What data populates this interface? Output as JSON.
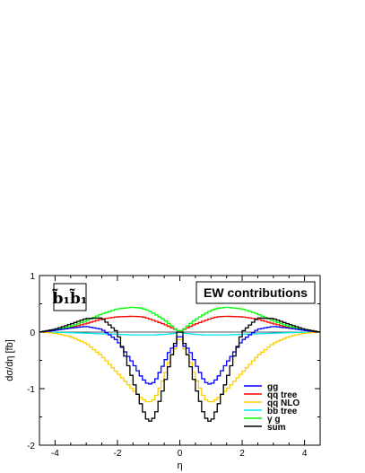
{
  "chart_data": {
    "type": "line",
    "title": "",
    "xlabel": "η",
    "ylabel": "dσ/dη [fb]",
    "xlim": [
      -4.5,
      4.5
    ],
    "ylim": [
      -2,
      1
    ],
    "xticks": [
      "-4",
      "-2",
      "0",
      "2",
      "4"
    ],
    "xtick_values": [
      -4,
      -2,
      0,
      2,
      4
    ],
    "yticks": [
      "-2",
      "-1",
      "0",
      "1"
    ],
    "ytick_values": [
      -2,
      -1,
      0,
      1
    ],
    "process_label": "b̃₁b̃₁",
    "annotation": "EW contributions",
    "legend_position": "bottom-right",
    "x": [
      -4.5,
      -4.0,
      -3.5,
      -3.0,
      -2.5,
      -2.0,
      -1.5,
      -1.2,
      -1.0,
      -0.8,
      -0.5,
      -0.3,
      -0.15,
      0.0,
      0.15,
      0.3,
      0.5,
      0.8,
      1.0,
      1.2,
      1.5,
      2.0,
      2.5,
      3.0,
      3.5,
      4.0,
      4.5
    ],
    "series": [
      {
        "name": "gg",
        "color": "#0000ff",
        "values": [
          0.0,
          0.03,
          0.07,
          0.1,
          0.05,
          -0.15,
          -0.55,
          -0.82,
          -0.93,
          -0.88,
          -0.55,
          -0.3,
          -0.25,
          0.0,
          -0.25,
          -0.3,
          -0.55,
          -0.88,
          -0.93,
          -0.82,
          -0.55,
          -0.15,
          0.05,
          0.1,
          0.07,
          0.03,
          0.0
        ]
      },
      {
        "name": "qq tree",
        "color": "#ff0000",
        "values": [
          0.0,
          0.03,
          0.08,
          0.15,
          0.23,
          0.27,
          0.28,
          0.27,
          0.24,
          0.2,
          0.14,
          0.09,
          0.05,
          0.01,
          0.05,
          0.09,
          0.14,
          0.2,
          0.24,
          0.27,
          0.28,
          0.27,
          0.23,
          0.15,
          0.08,
          0.03,
          0.0
        ]
      },
      {
        "name": "qq NLO",
        "color": "#ffcc00",
        "values": [
          0.0,
          -0.02,
          -0.08,
          -0.2,
          -0.42,
          -0.72,
          -1.02,
          -1.18,
          -1.25,
          -1.18,
          -0.8,
          -0.45,
          -0.3,
          -0.05,
          -0.3,
          -0.45,
          -0.8,
          -1.18,
          -1.25,
          -1.18,
          -1.02,
          -0.72,
          -0.42,
          -0.2,
          -0.08,
          -0.02,
          0.0
        ]
      },
      {
        "name": "bb tree",
        "color": "#00e5ee",
        "values": [
          0.0,
          -0.005,
          -0.01,
          -0.02,
          -0.03,
          -0.04,
          -0.05,
          -0.05,
          -0.05,
          -0.05,
          -0.04,
          -0.03,
          -0.02,
          0.0,
          -0.02,
          -0.03,
          -0.04,
          -0.05,
          -0.05,
          -0.05,
          -0.05,
          -0.04,
          -0.03,
          -0.02,
          -0.01,
          -0.005,
          0.0
        ]
      },
      {
        "name": "γ g",
        "color": "#00ff00",
        "values": [
          0.0,
          0.04,
          0.1,
          0.2,
          0.32,
          0.41,
          0.44,
          0.42,
          0.38,
          0.32,
          0.22,
          0.13,
          0.06,
          0.01,
          0.06,
          0.13,
          0.22,
          0.32,
          0.38,
          0.42,
          0.44,
          0.41,
          0.32,
          0.2,
          0.1,
          0.04,
          0.0
        ]
      },
      {
        "name": "sum",
        "color": "#000000",
        "values": [
          0.0,
          0.05,
          0.14,
          0.24,
          0.25,
          0.0,
          -0.85,
          -1.35,
          -1.6,
          -1.5,
          -0.95,
          -0.5,
          -0.2,
          0.1,
          -0.2,
          -0.5,
          -0.95,
          -1.5,
          -1.6,
          -1.35,
          -0.85,
          0.0,
          0.25,
          0.24,
          0.14,
          0.05,
          0.0
        ]
      }
    ]
  }
}
